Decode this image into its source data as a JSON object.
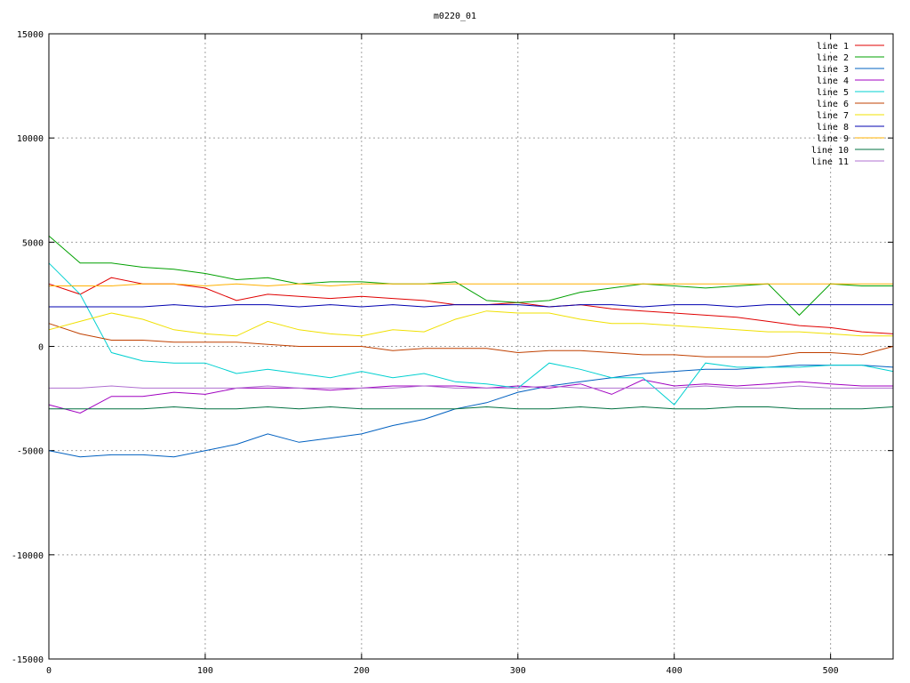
{
  "chart_data": {
    "type": "line",
    "title": "m0220_01",
    "xlim": [
      0,
      540
    ],
    "ylim": [
      -15000,
      15000
    ],
    "x_ticks": [
      0,
      100,
      200,
      300,
      400,
      500
    ],
    "y_ticks": [
      -15000,
      -10000,
      -5000,
      0,
      5000,
      10000,
      15000
    ],
    "grid": true,
    "legend_position": "top-right",
    "x": [
      0,
      20,
      40,
      60,
      80,
      100,
      120,
      140,
      160,
      180,
      200,
      220,
      240,
      260,
      280,
      300,
      320,
      340,
      360,
      380,
      400,
      420,
      440,
      460,
      480,
      500,
      520,
      540
    ],
    "series": [
      {
        "name": "line 1",
        "color": "#e00000",
        "values": [
          3000,
          2500,
          3300,
          3000,
          3000,
          2800,
          2200,
          2500,
          2400,
          2300,
          2400,
          2300,
          2200,
          2000,
          2000,
          2100,
          1900,
          2000,
          1800,
          1700,
          1600,
          1500,
          1400,
          1200,
          1000,
          900,
          700,
          600
        ]
      },
      {
        "name": "line 2",
        "color": "#00a000",
        "values": [
          5300,
          4000,
          4000,
          3800,
          3700,
          3500,
          3200,
          3300,
          3000,
          3100,
          3100,
          3000,
          3000,
          3100,
          2200,
          2100,
          2200,
          2600,
          2800,
          3000,
          2900,
          2800,
          2900,
          3000,
          1500,
          3000,
          2900,
          2900
        ]
      },
      {
        "name": "line 3",
        "color": "#0060c0",
        "values": [
          -5000,
          -5300,
          -5200,
          -5200,
          -5300,
          -5000,
          -4700,
          -4200,
          -4600,
          -4400,
          -4200,
          -3800,
          -3500,
          -3000,
          -2700,
          -2200,
          -1900,
          -1700,
          -1500,
          -1300,
          -1200,
          -1100,
          -1100,
          -1000,
          -900,
          -900,
          -900,
          -1000
        ]
      },
      {
        "name": "line 4",
        "color": "#a000c0",
        "values": [
          -2800,
          -3200,
          -2400,
          -2400,
          -2200,
          -2300,
          -2000,
          -2000,
          -2000,
          -2100,
          -2000,
          -1900,
          -1900,
          -1900,
          -2000,
          -1900,
          -2000,
          -1800,
          -2300,
          -1600,
          -1900,
          -1800,
          -1900,
          -1800,
          -1700,
          -1800,
          -1900,
          -1900
        ]
      },
      {
        "name": "line 5",
        "color": "#00d0d0",
        "values": [
          4000,
          2500,
          -300,
          -700,
          -800,
          -800,
          -1300,
          -1100,
          -1300,
          -1500,
          -1200,
          -1500,
          -1300,
          -1700,
          -1800,
          -2000,
          -800,
          -1100,
          -1500,
          -1500,
          -2800,
          -800,
          -1000,
          -1000,
          -1000,
          -900,
          -900,
          -1200
        ]
      },
      {
        "name": "line 6",
        "color": "#c04000",
        "values": [
          1100,
          600,
          300,
          300,
          200,
          200,
          200,
          100,
          0,
          0,
          0,
          -200,
          -100,
          -100,
          -100,
          -300,
          -200,
          -200,
          -300,
          -400,
          -400,
          -500,
          -500,
          -500,
          -300,
          -300,
          -400,
          0
        ]
      },
      {
        "name": "line 7",
        "color": "#f0e000",
        "values": [
          800,
          1200,
          1600,
          1300,
          800,
          600,
          500,
          1200,
          800,
          600,
          500,
          800,
          700,
          1300,
          1700,
          1600,
          1600,
          1300,
          1100,
          1100,
          1000,
          900,
          800,
          700,
          700,
          600,
          500,
          500
        ]
      },
      {
        "name": "line 8",
        "color": "#0000b0",
        "values": [
          1900,
          1900,
          1900,
          1900,
          2000,
          1900,
          2000,
          2000,
          1900,
          2000,
          1900,
          2000,
          1900,
          2000,
          2000,
          2000,
          1900,
          2000,
          2000,
          1900,
          2000,
          2000,
          1900,
          2000,
          2000,
          2000,
          2000,
          2000
        ]
      },
      {
        "name": "line 9",
        "color": "#ffb000",
        "values": [
          2900,
          2900,
          2900,
          3000,
          3000,
          2900,
          3000,
          2900,
          3000,
          2900,
          3000,
          3000,
          3000,
          3000,
          3000,
          3000,
          3000,
          3000,
          3000,
          3000,
          3000,
          3000,
          3000,
          3000,
          3000,
          3000,
          3000,
          3000
        ]
      },
      {
        "name": "line 10",
        "color": "#007040",
        "values": [
          -3000,
          -3000,
          -3000,
          -3000,
          -2900,
          -3000,
          -3000,
          -2900,
          -3000,
          -2900,
          -3000,
          -3000,
          -3000,
          -3000,
          -2900,
          -3000,
          -3000,
          -2900,
          -3000,
          -2900,
          -3000,
          -3000,
          -2900,
          -2900,
          -3000,
          -3000,
          -3000,
          -2900
        ]
      },
      {
        "name": "line 11",
        "color": "#b070d0",
        "values": [
          -2000,
          -2000,
          -1900,
          -2000,
          -2000,
          -2000,
          -2000,
          -1900,
          -2000,
          -2000,
          -2000,
          -2000,
          -1900,
          -2000,
          -2000,
          -2000,
          -1900,
          -2000,
          -2000,
          -2000,
          -2000,
          -1900,
          -2000,
          -2000,
          -1900,
          -2000,
          -2000,
          -2000
        ]
      }
    ]
  }
}
